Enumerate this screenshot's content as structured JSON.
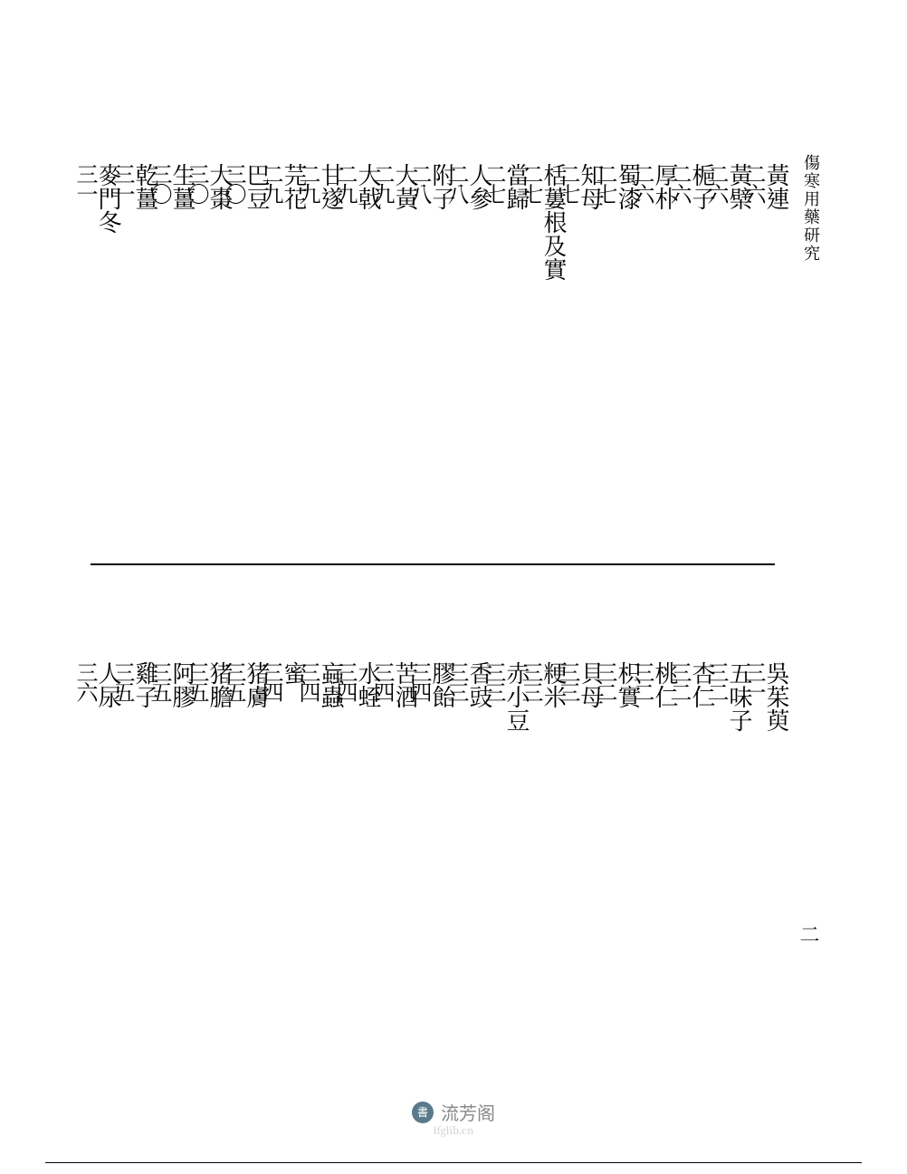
{
  "book_title": "傷寒用藥研究",
  "page_marker": "二",
  "upper_entries": [
    {
      "term": "黃連",
      "page": "二六"
    },
    {
      "term": "黃檗",
      "page": "二六"
    },
    {
      "term": "梔子",
      "page": "二六"
    },
    {
      "term": "厚朴",
      "page": "二六"
    },
    {
      "term": "蜀漆",
      "page": "二七"
    },
    {
      "term": "知母",
      "page": "二七"
    },
    {
      "term": "栝蔞根及實",
      "page": "二七"
    },
    {
      "term": "當歸",
      "page": "二七"
    },
    {
      "term": "人參",
      "page": "二八"
    },
    {
      "term": "附子",
      "page": "二八"
    },
    {
      "term": "大黃",
      "page": "二九"
    },
    {
      "term": "大戟",
      "page": "二九"
    },
    {
      "term": "甘遂",
      "page": "二九"
    },
    {
      "term": "芫花",
      "page": "二九"
    },
    {
      "term": "巴豆",
      "page": "三〇"
    },
    {
      "term": "大棗",
      "page": "三〇"
    },
    {
      "term": "生薑",
      "page": "三〇"
    },
    {
      "term": "乾薑",
      "page": "三一"
    },
    {
      "term": "麥門冬",
      "page": "三一"
    }
  ],
  "lower_entries": [
    {
      "term": "吳茱萸",
      "page": "三一"
    },
    {
      "term": "五味子",
      "page": "三二"
    },
    {
      "term": "杏仁",
      "page": "三二"
    },
    {
      "term": "桃仁",
      "page": "三二"
    },
    {
      "term": "枳實",
      "page": "三二"
    },
    {
      "term": "貝母",
      "page": "三三"
    },
    {
      "term": "粳米",
      "page": "三三"
    },
    {
      "term": "赤小豆",
      "page": "三三"
    },
    {
      "term": "香豉",
      "page": "三三"
    },
    {
      "term": "膠飴",
      "page": "三四"
    },
    {
      "term": "苦酒",
      "page": "三四"
    },
    {
      "term": "水蛭",
      "page": "三四"
    },
    {
      "term": "蝱蟲",
      "page": "三四"
    },
    {
      "term": "蜜",
      "page": "三四"
    },
    {
      "term": "猪膚",
      "page": "三五"
    },
    {
      "term": "猪膽",
      "page": "三五"
    },
    {
      "term": "阿膠",
      "page": "三五"
    },
    {
      "term": "雞子",
      "page": "三五"
    },
    {
      "term": "人尿",
      "page": "三六"
    }
  ],
  "footer": {
    "site_name": "流芳阁",
    "url": "lfglib.cn"
  },
  "colors": {
    "text": "#000000",
    "background": "#ffffff",
    "footer_text": "#888888",
    "logo_bg": "#5a7a8a"
  }
}
